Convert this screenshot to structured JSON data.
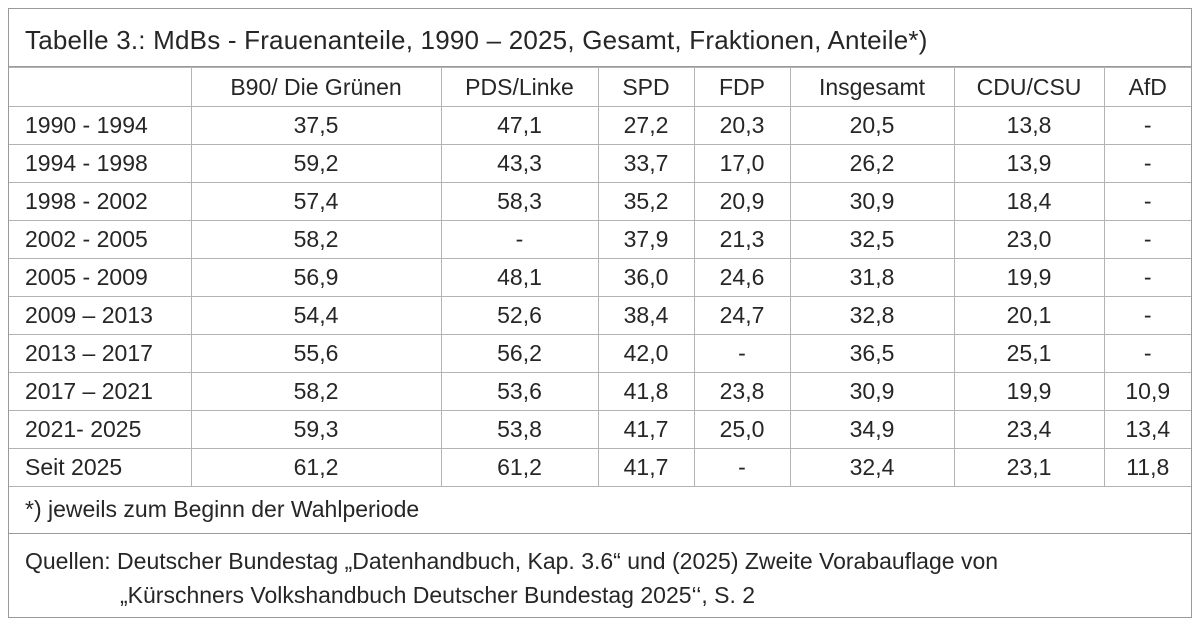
{
  "title": "Tabelle 3.: MdBs - Frauenanteile, 1990 – 2025, Gesamt, Fraktionen, Anteile*)",
  "table": {
    "headers": [
      "",
      "B90/ Die Grünen",
      "PDS/Linke",
      "SPD",
      "FDP",
      "Insgesamt",
      "CDU/CSU",
      "AfD"
    ],
    "rows": [
      [
        "1990 - 1994",
        "37,5",
        "47,1",
        "27,2",
        "20,3",
        "20,5",
        "13,8",
        "-"
      ],
      [
        "1994 - 1998",
        "59,2",
        "43,3",
        "33,7",
        "17,0",
        "26,2",
        "13,9",
        "-"
      ],
      [
        "1998 - 2002",
        "57,4",
        "58,3",
        "35,2",
        "20,9",
        "30,9",
        "18,4",
        "-"
      ],
      [
        "2002 - 2005",
        "58,2",
        "-",
        "37,9",
        "21,3",
        "32,5",
        "23,0",
        "-"
      ],
      [
        "2005 - 2009",
        "56,9",
        "48,1",
        "36,0",
        "24,6",
        "31,8",
        "19,9",
        "-"
      ],
      [
        "2009 – 2013",
        "54,4",
        "52,6",
        "38,4",
        "24,7",
        "32,8",
        "20,1",
        "-"
      ],
      [
        "2013 – 2017",
        "55,6",
        "56,2",
        "42,0",
        "-",
        "36,5",
        "25,1",
        "-"
      ],
      [
        "2017 – 2021",
        "58,2",
        "53,6",
        "41,8",
        "23,8",
        "30,9",
        "19,9",
        "10,9"
      ],
      [
        "2021- 2025",
        "59,3",
        "53,8",
        "41,7",
        "25,0",
        "34,9",
        "23,4",
        "13,4"
      ],
      [
        "Seit 2025",
        "61,2",
        "61,2",
        "41,7",
        "-",
        "32,4",
        "23,1",
        "11,8"
      ]
    ]
  },
  "footnote": "*) jeweils zum Beginn der Wahlperiode",
  "sources": {
    "line1": "Quellen: Deutscher Bundestag „Datenhandbuch, Kap. 3.6“ und (2025) Zweite Vorabauflage von",
    "line2": "„Kürschners Volkshandbuch Deutscher Bundestag 2025‘‘, S. 2"
  }
}
